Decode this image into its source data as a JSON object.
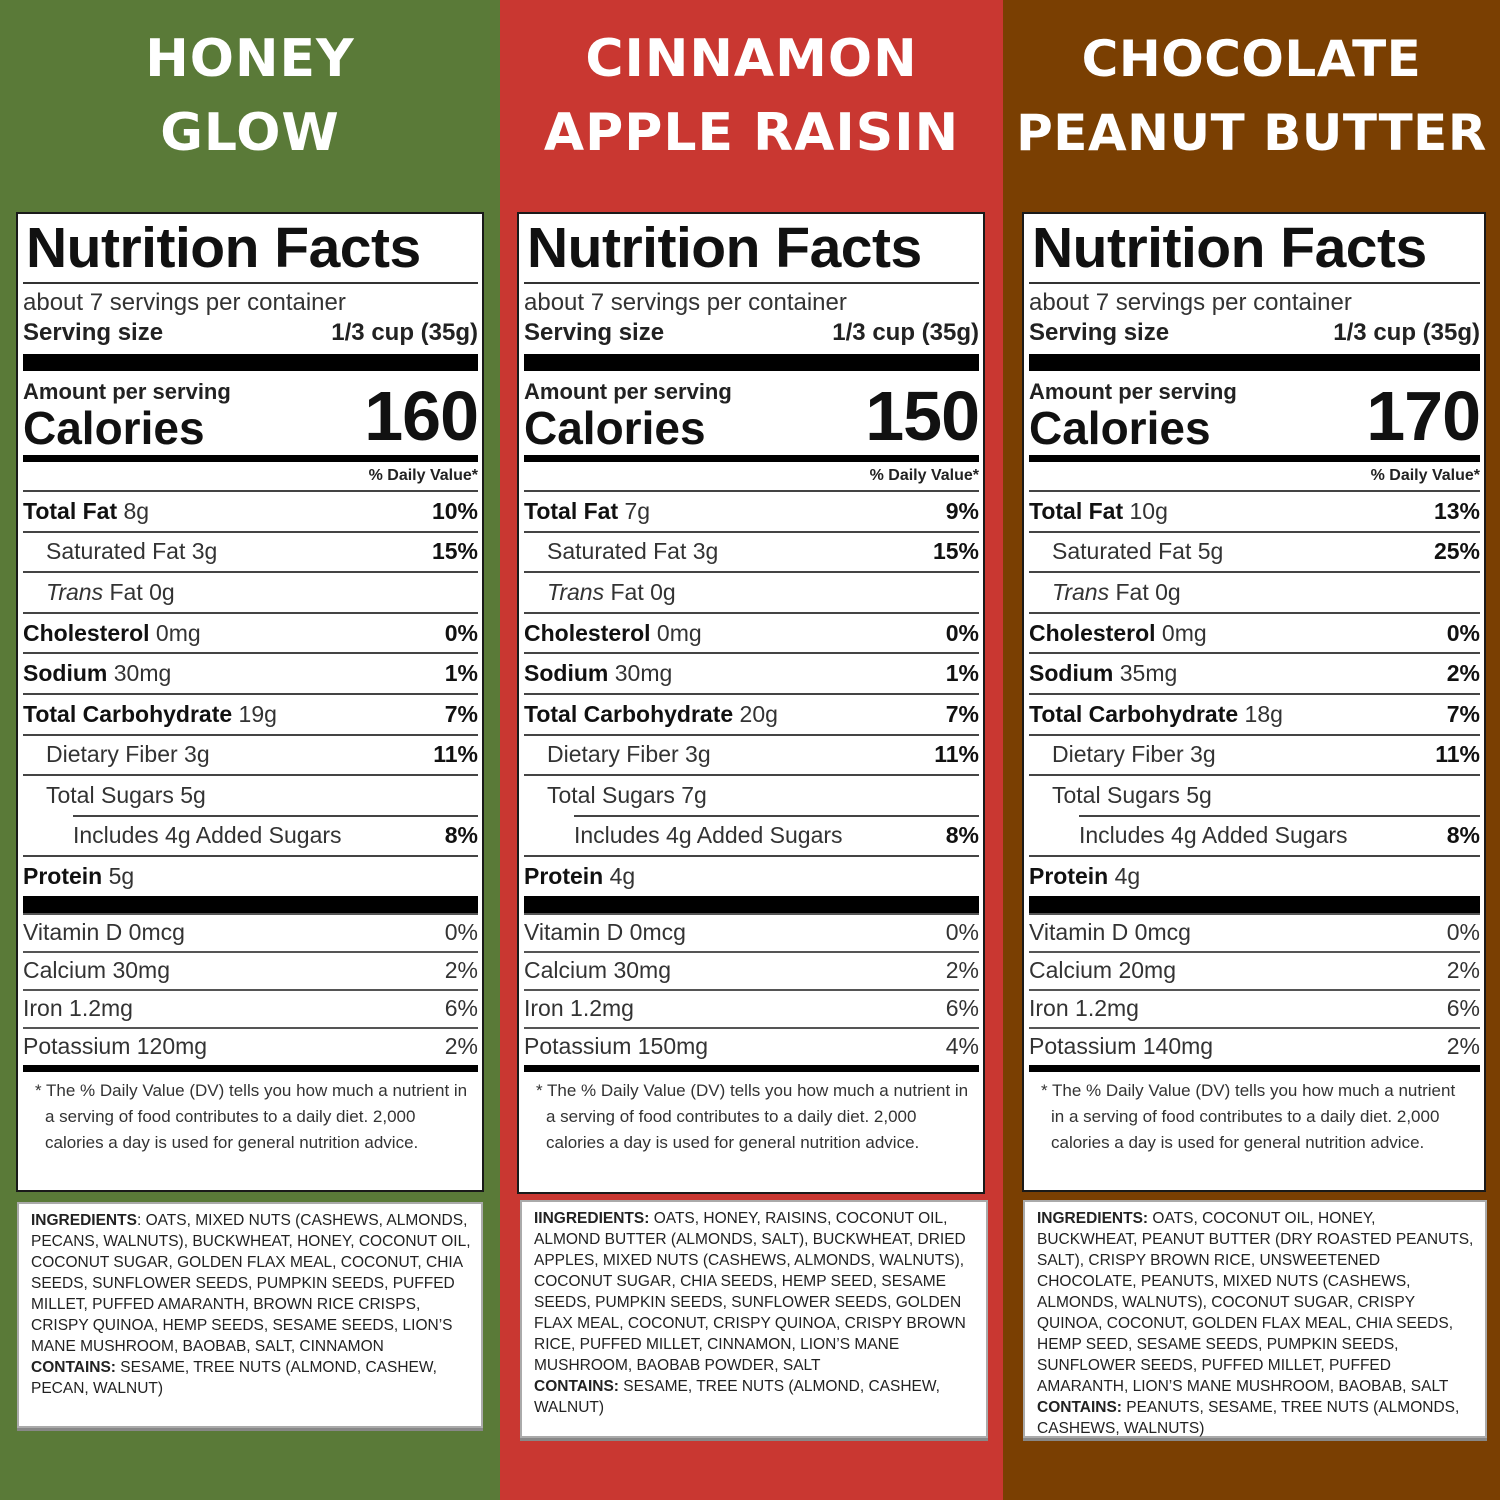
{
  "products": [
    {
      "name_line1": "HONEY",
      "name_line2": "GLOW",
      "bg_color": "#5a7a38",
      "label": {
        "heading": "Nutrition Facts",
        "servings": "about 7 servings per container",
        "serving_size_label": "Serving size",
        "serving_size_value": "1/3 cup (35g)",
        "amount_per_serving": "Amount per serving",
        "calories_label": "Calories",
        "calories": "160",
        "dv_header": "% Daily Value*",
        "total_fat": {
          "label": "Total Fat",
          "value": "8g",
          "dv": "10%"
        },
        "saturated_fat": {
          "label": "Saturated Fat",
          "value": "3g",
          "dv": "15%"
        },
        "trans_fat": {
          "label_italic": "Trans",
          "label": "Fat",
          "value": "0g"
        },
        "cholesterol": {
          "label": "Cholesterol",
          "value": "0mg",
          "dv": "0%"
        },
        "sodium": {
          "label": "Sodium",
          "value": "30mg",
          "dv": "1%"
        },
        "total_carb": {
          "label": "Total Carbohydrate",
          "value": "19g",
          "dv": "7%"
        },
        "fiber": {
          "label": "Dietary Fiber",
          "value": "3g",
          "dv": "11%"
        },
        "sugars": {
          "label": "Total Sugars",
          "value": "5g"
        },
        "added_sugars": {
          "label": "Includes 4g Added Sugars",
          "dv": "8%"
        },
        "protein": {
          "label": "Protein",
          "value": "5g"
        },
        "vitamin_d": {
          "label": "Vitamin D 0mcg",
          "dv": "0%"
        },
        "calcium": {
          "label": "Calcium 30mg",
          "dv": "2%"
        },
        "iron": {
          "label": "Iron 1.2mg",
          "dv": "6%"
        },
        "potassium": {
          "label": "Potassium 120mg",
          "dv": "2%"
        },
        "footnote": "* The % Daily Value (DV) tells you how much a nutrient in a serving of food contributes to a daily diet. 2,000 calories a day is used for general nutrition advice."
      },
      "ingredients_label": "INGREDIENTS",
      "ingredients_sep": ": ",
      "ingredients": "OATS, MIXED NUTS (CASHEWS, ALMONDS, PECANS, WALNUTS), BUCKWHEAT, HONEY, COCONUT OIL, COCONUT SUGAR, GOLDEN FLAX MEAL, COCONUT, CHIA SEEDS, SUNFLOWER SEEDS, PUMPKIN SEEDS, PUFFED MILLET, PUFFED AMARANTH, BROWN RICE CRISPS, CRISPY QUINOA, HEMP SEEDS, SESAME SEEDS, LION’S MANE MUSHROOM, BAOBAB, SALT, CINNAMON",
      "contains_label": "CONTAINS:",
      "contains": "SESAME, TREE NUTS (ALMOND, CASHEW, PECAN, WALNUT)"
    },
    {
      "name_line1": "CINNAMON",
      "name_line2": "APPLE RAISIN",
      "bg_color": "#c93731",
      "label": {
        "heading": "Nutrition Facts",
        "servings": "about 7 servings per container",
        "serving_size_label": "Serving size",
        "serving_size_value": "1/3 cup (35g)",
        "amount_per_serving": "Amount per serving",
        "calories_label": "Calories",
        "calories": "150",
        "dv_header": "% Daily Value*",
        "total_fat": {
          "label": "Total Fat",
          "value": "7g",
          "dv": "9%"
        },
        "saturated_fat": {
          "label": "Saturated Fat",
          "value": "3g",
          "dv": "15%"
        },
        "trans_fat": {
          "label_italic": "Trans",
          "label": "Fat",
          "value": "0g"
        },
        "cholesterol": {
          "label": "Cholesterol",
          "value": "0mg",
          "dv": "0%"
        },
        "sodium": {
          "label": "Sodium",
          "value": "30mg",
          "dv": "1%"
        },
        "total_carb": {
          "label": "Total Carbohydrate",
          "value": "20g",
          "dv": "7%"
        },
        "fiber": {
          "label": "Dietary Fiber",
          "value": "3g",
          "dv": "11%"
        },
        "sugars": {
          "label": "Total Sugars",
          "value": "7g"
        },
        "added_sugars": {
          "label": "Includes 4g Added Sugars",
          "dv": "8%"
        },
        "protein": {
          "label": "Protein",
          "value": "4g"
        },
        "vitamin_d": {
          "label": "Vitamin D 0mcg",
          "dv": "0%"
        },
        "calcium": {
          "label": "Calcium 30mg",
          "dv": "2%"
        },
        "iron": {
          "label": "Iron 1.2mg",
          "dv": "6%"
        },
        "potassium": {
          "label": "Potassium 150mg",
          "dv": "4%"
        },
        "footnote": "* The % Daily Value (DV) tells you how much a nutrient in a serving of food contributes to a daily diet. 2,000 calories a day is used for general nutrition advice."
      },
      "ingredients_label": "IINGREDIENTS:",
      "ingredients_sep": " ",
      "ingredients": "OATS, HONEY, RAISINS, COCONUT OIL, ALMOND BUTTER (ALMONDS, SALT), BUCKWHEAT, DRIED APPLES, MIXED NUTS (CASHEWS, ALMONDS, WALNUTS), COCONUT SUGAR, CHIA SEEDS, HEMP SEED, SESAME SEEDS, PUMPKIN SEEDS, SUNFLOWER SEEDS, GOLDEN FLAX MEAL, COCONUT, CRISPY QUINOA, CRISPY BROWN RICE, PUFFED MILLET, CINNAMON, LION’S MANE MUSHROOM, BAOBAB POWDER, SALT",
      "contains_label": "CONTAINS:",
      "contains": "SESAME, TREE NUTS (ALMOND, CASHEW, WALNUT)"
    },
    {
      "name_line1": "CHOCOLATE",
      "name_line2": "PEANUT BUTTER",
      "bg_color": "#7a3f02",
      "label": {
        "heading": "Nutrition Facts",
        "servings": "about 7 servings per container",
        "serving_size_label": "Serving size",
        "serving_size_value": "1/3 cup (35g)",
        "amount_per_serving": "Amount per serving",
        "calories_label": "Calories",
        "calories": "170",
        "dv_header": "% Daily Value*",
        "total_fat": {
          "label": "Total Fat",
          "value": "10g",
          "dv": "13%"
        },
        "saturated_fat": {
          "label": "Saturated Fat",
          "value": "5g",
          "dv": "25%"
        },
        "trans_fat": {
          "label_italic": "Trans",
          "label": "Fat",
          "value": "0g"
        },
        "cholesterol": {
          "label": "Cholesterol",
          "value": "0mg",
          "dv": "0%"
        },
        "sodium": {
          "label": "Sodium",
          "value": "35mg",
          "dv": "2%"
        },
        "total_carb": {
          "label": "Total Carbohydrate",
          "value": "18g",
          "dv": "7%"
        },
        "fiber": {
          "label": "Dietary Fiber",
          "value": "3g",
          "dv": "11%"
        },
        "sugars": {
          "label": "Total Sugars",
          "value": "5g"
        },
        "added_sugars": {
          "label": "Includes 4g Added Sugars",
          "dv": "8%"
        },
        "protein": {
          "label": "Protein",
          "value": "4g"
        },
        "vitamin_d": {
          "label": "Vitamin D 0mcg",
          "dv": "0%"
        },
        "calcium": {
          "label": "Calcium 20mg",
          "dv": "2%"
        },
        "iron": {
          "label": "Iron 1.2mg",
          "dv": "6%"
        },
        "potassium": {
          "label": "Potassium 140mg",
          "dv": "2%"
        },
        "footnote": "* The % Daily Value (DV) tells you how much a nutrient in a serving of food contributes to a daily diet. 2,000 calories a day is used for general nutrition advice."
      },
      "ingredients_label": "INGREDIENTS:",
      "ingredients_sep": " ",
      "ingredients": "OATS, COCONUT OIL, HONEY, BUCKWHEAT, PEANUT BUTTER (DRY ROASTED PEANUTS, SALT), CRISPY BROWN RICE, UNSWEETENED CHOCOLATE, PEANUTS, MIXED NUTS (CASHEWS, ALMONDS, WALNUTS), COCONUT SUGAR, CRISPY QUINOA, COCONUT, GOLDEN FLAX MEAL, CHIA SEEDS, HEMP SEED, SESAME SEEDS, PUMPKIN SEEDS, SUNFLOWER SEEDS, PUFFED MILLET, PUFFED AMARANTH, LION’S MANE MUSHROOM, BAOBAB, SALT",
      "contains_label": "CONTAINS:",
      "contains": "PEANUTS, SESAME, TREE NUTS (ALMONDS, CASHEWS, WALNUTS)"
    }
  ]
}
